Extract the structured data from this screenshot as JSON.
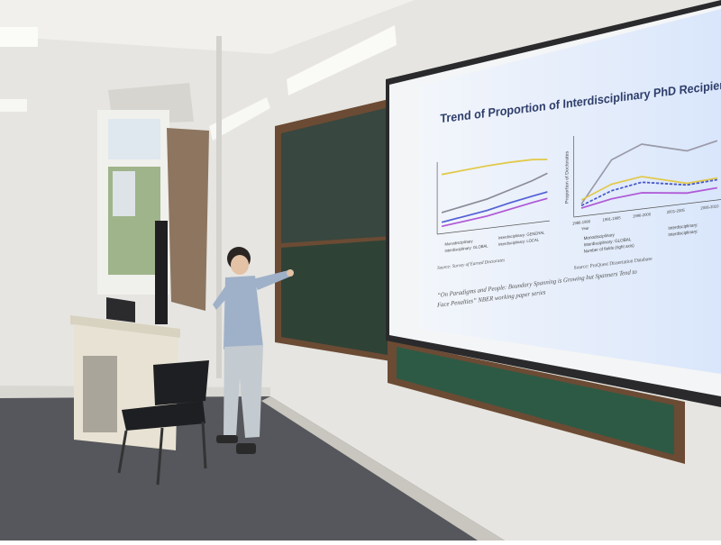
{
  "slide": {
    "title": "Trend of Proportion of Interdisciplinary PhD Recipien",
    "left_chart": {
      "legend": [
        "Monodisciplinary",
        "Interdisciplinary: GENERAL",
        "Interdisciplinary: GLOBAL",
        "Interdisciplinary: LOCAL"
      ],
      "source": "Source: Survey of Earned Doctorates"
    },
    "right_chart": {
      "y_label": "Proportion of Doctorates",
      "x_title": "Year",
      "x_labels": [
        "1986-1990",
        "1991-1995",
        "1996-2000",
        "2001-2005",
        "2006-2010"
      ],
      "legend": [
        "Monodisciplinary",
        "Interdisciplinary: GLOBAL",
        "Number of fields (right axis)",
        "Interdisciplinary:",
        "Interdisciplinary:"
      ],
      "source": "Source: ProQuest Dissertation Database"
    },
    "citation": [
      "“On Paradigms and People: Boundary Spanning is Growing but Spanners Tend to",
      "Face Penalties” NBER working paper series"
    ]
  }
}
